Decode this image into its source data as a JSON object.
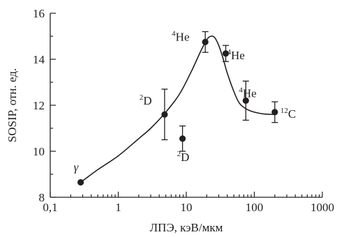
{
  "chart_data": {
    "type": "scatter",
    "title": "",
    "xlabel": "ЛПЭ, кэВ/мкм",
    "ylabel": "SOSIP, отн. ед.",
    "xscale": "log",
    "xlim": [
      0.1,
      1000
    ],
    "ylim": [
      8,
      16
    ],
    "xticks": [
      0.1,
      1,
      10,
      100,
      1000
    ],
    "xtick_labels": [
      "0,1",
      "1",
      "10",
      "100",
      "1000"
    ],
    "yticks": [
      8,
      10,
      12,
      14,
      16
    ],
    "ytick_labels": [
      "8",
      "10",
      "12",
      "14",
      "16"
    ],
    "grid": false,
    "legend": "none",
    "series": [
      {
        "points": [
          {
            "x": 0.28,
            "y": 8.65,
            "err": 0.0
          },
          {
            "x": 4.8,
            "y": 11.6,
            "err": 1.1
          },
          {
            "x": 8.8,
            "y": 10.55,
            "err": 0.55
          },
          {
            "x": 19,
            "y": 14.75,
            "err": 0.45
          },
          {
            "x": 38,
            "y": 14.25,
            "err": 0.35
          },
          {
            "x": 75,
            "y": 12.2,
            "err": 0.85
          },
          {
            "x": 200,
            "y": 11.7,
            "err": 0.45
          }
        ]
      }
    ],
    "fit_curve": {
      "x": [
        0.28,
        0.5,
        1,
        2,
        3,
        5,
        8,
        12,
        16,
        20,
        23,
        26,
        30,
        35,
        40,
        50,
        60,
        75,
        100,
        140,
        200
      ],
      "y": [
        8.65,
        9.2,
        9.8,
        10.55,
        11.0,
        11.7,
        12.5,
        13.5,
        14.3,
        14.85,
        15.0,
        14.95,
        14.6,
        14.0,
        13.4,
        12.6,
        12.1,
        11.85,
        11.7,
        11.62,
        11.6
      ]
    },
    "annotations": [
      {
        "label": "γ",
        "isotope_mass": "",
        "element": "",
        "x": 0.28,
        "y": 8.65
      },
      {
        "label": "",
        "isotope_mass": "2",
        "element": "D",
        "x": 4.8,
        "y": 11.6
      },
      {
        "label": "",
        "isotope_mass": "2",
        "element": "D",
        "x": 8.8,
        "y": 10.55
      },
      {
        "label": "",
        "isotope_mass": "4",
        "element": "He",
        "x": 19,
        "y": 14.75
      },
      {
        "label": "",
        "isotope_mass": "4",
        "element": "He",
        "x": 38,
        "y": 14.25
      },
      {
        "label": "",
        "isotope_mass": "4",
        "element": "He",
        "x": 75,
        "y": 12.2
      },
      {
        "label": "",
        "isotope_mass": "12",
        "element": "C",
        "x": 200,
        "y": 11.7
      }
    ]
  }
}
